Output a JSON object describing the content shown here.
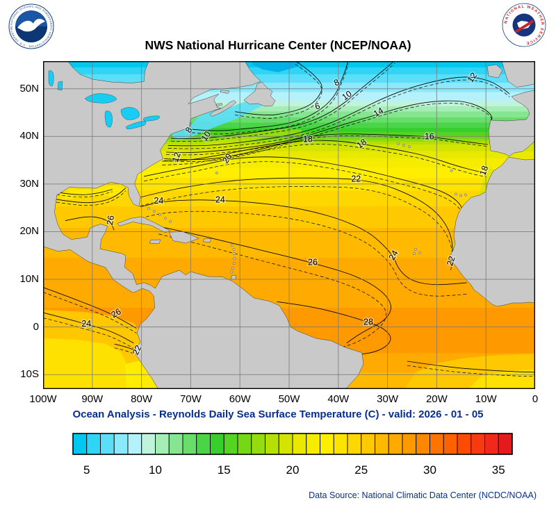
{
  "header": {
    "title": "NWS National Hurricane Center (NCEP/NOAA)",
    "noaa_logo_alt": "NOAA",
    "noaa_ring_text": "NATIONAL OCEANIC AND ATMOSPHERIC ADMINISTRATION · U.S. DEPARTMENT OF COMMERCE",
    "nws_ring_text": "NATIONAL WEATHER SERVICE"
  },
  "caption": "Ocean Analysis - Reynolds Daily Sea Surface Temperature (C) - valid: 2026 - 01 - 05",
  "footer": "Data Source: National Climatic Data Center (NCDC/NOAA)",
  "theme": {
    "title_color": "#000000",
    "caption_color": "#082d8d",
    "footer_color": "#082d8d",
    "nws_ring_color": "#cc2229",
    "noaa_navy": "#123d7c"
  },
  "map": {
    "lat_labels": [
      "50N",
      "40N",
      "30N",
      "20N",
      "10N",
      "0",
      "10S"
    ],
    "lat_values": [
      50,
      40,
      30,
      20,
      10,
      0,
      -10
    ],
    "lon_labels": [
      "100W",
      "90W",
      "80W",
      "70W",
      "60W",
      "50W",
      "40W",
      "30W",
      "20W",
      "10W",
      "0"
    ],
    "lon_values": [
      -100,
      -90,
      -80,
      -70,
      -60,
      -50,
      -40,
      -30,
      -20,
      -10,
      0
    ],
    "land_color": "#c9c9c9",
    "coast_color": "#3c3c3c",
    "grid_color": "#787878",
    "lake_color": "#17cdf4",
    "deep_cold_color": "#00b2e8",
    "frame_color": "#000000"
  },
  "chart_data": {
    "type": "heatmap",
    "title": "NWS National Hurricane Center (NCEP/NOAA)",
    "subtitle": "Ocean Analysis - Reynolds Daily Sea Surface Temperature (C) - valid: 2026 - 01 - 05",
    "units": "C",
    "lon_range": [
      -100,
      0
    ],
    "lat_range": [
      -13,
      55.8
    ],
    "grid": true,
    "labeled_levels": [
      6,
      8,
      10,
      12,
      14,
      16,
      18,
      20,
      22,
      24,
      26,
      28
    ],
    "contour_interval_solid": 2,
    "contour_interval_dashed": 1,
    "colorbar": {
      "min": 4,
      "max": 36,
      "ticks": [
        5,
        10,
        15,
        20,
        25,
        30,
        35
      ],
      "colors": [
        "#00C8F0",
        "#30D4F4",
        "#5CDEF8",
        "#8AE9FB",
        "#B4F1FA",
        "#BFF3DC",
        "#A4EDB4",
        "#86E590",
        "#68DD6C",
        "#4AD548",
        "#38CF2E",
        "#57D321",
        "#76D815",
        "#95DC0C",
        "#B4E006",
        "#D3E400",
        "#E9E800",
        "#F6EC00",
        "#FFEE00",
        "#FFE300",
        "#FFD700",
        "#FFC900",
        "#FFBA00",
        "#FFAA00",
        "#FF9900",
        "#FF8700",
        "#FF7400",
        "#FF6000",
        "#FF4B00",
        "#F93A10",
        "#F1281A",
        "#E51A1C"
      ]
    },
    "gradient_bands": [
      {
        "t": 4,
        "to": 54.5
      },
      {
        "t": 5,
        "to": 53
      },
      {
        "t": 6,
        "to": 51.3
      },
      {
        "t": 7,
        "to": 49.3
      },
      {
        "t": 8,
        "to": 47.5
      },
      {
        "t": 9,
        "to": 46.3
      },
      {
        "t": 10,
        "to": 45.2
      },
      {
        "t": 11,
        "to": 44
      },
      {
        "t": 12,
        "to": 42.9
      },
      {
        "t": 13,
        "to": 41.8
      },
      {
        "t": 14,
        "to": 40.9
      },
      {
        "t": 15,
        "to": 40.1
      },
      {
        "t": 16,
        "to": 39.4
      },
      {
        "t": 17,
        "to": 38.9
      },
      {
        "t": 18,
        "to": 38.3
      },
      {
        "t": 19,
        "to": 36.9
      },
      {
        "t": 20,
        "to": 35.4
      },
      {
        "t": 21,
        "to": 33.4
      },
      {
        "t": 22,
        "to": 31.2
      },
      {
        "t": 23,
        "to": 28.6
      },
      {
        "t": 24,
        "to": 25.3
      },
      {
        "t": 25,
        "to": 20.8
      },
      {
        "t": 26,
        "to": 14.5
      },
      {
        "t": 27,
        "to": 4
      },
      {
        "t": 28,
        "to": -5.5
      },
      {
        "t": 27,
        "to": -9.5
      },
      {
        "t": 26,
        "to": -13
      }
    ],
    "contours": [
      {
        "v": 6,
        "dash": -0.7,
        "pts": [
          [
            -61,
            45.2
          ],
          [
            -55,
            44.2
          ],
          [
            -50,
            45
          ],
          [
            -46,
            46.3
          ],
          [
            -44,
            48.2
          ],
          [
            -43,
            50.6
          ],
          [
            -45,
            53
          ],
          [
            -47.5,
            55
          ],
          [
            -49,
            56
          ]
        ]
      },
      {
        "v": 8,
        "dash": -0.7,
        "pts": [
          [
            -69.8,
            41.5
          ],
          [
            -65,
            41
          ],
          [
            -58,
            41.7
          ],
          [
            -52,
            42.3
          ],
          [
            -47,
            43.6
          ],
          [
            -43,
            46
          ],
          [
            -40.5,
            48.8
          ],
          [
            -39.5,
            51.5
          ],
          [
            -38.5,
            54
          ],
          [
            -38,
            56
          ]
        ]
      },
      {
        "v": 10,
        "dash": -0.6,
        "pts": [
          [
            -74,
            39.6
          ],
          [
            -69,
            39.4
          ],
          [
            -62,
            40.2
          ],
          [
            -55,
            41.1
          ],
          [
            -48,
            42.3
          ],
          [
            -43,
            44.2
          ],
          [
            -39,
            46.8
          ],
          [
            -36,
            49.5
          ],
          [
            -33,
            52
          ],
          [
            -30,
            54.6
          ],
          [
            -28.5,
            56
          ]
        ]
      },
      {
        "v": 12,
        "dash": -0.6,
        "pts": [
          [
            -74.6,
            38.1
          ],
          [
            -68,
            37.9
          ],
          [
            -60,
            38.7
          ],
          [
            -52,
            39.8
          ],
          [
            -46,
            41.2
          ],
          [
            -41,
            43
          ],
          [
            -36,
            45.4
          ],
          [
            -31,
            48
          ],
          [
            -25,
            50.4
          ],
          [
            -18,
            52.2
          ],
          [
            -13,
            52.6
          ],
          [
            -9,
            51.6
          ],
          [
            -6.5,
            50
          ],
          [
            -5.2,
            48.9
          ]
        ]
      },
      {
        "v": 14,
        "dash": -0.5,
        "pts": [
          [
            -75,
            36.7
          ],
          [
            -70,
            36.5
          ],
          [
            -63,
            37.1
          ],
          [
            -55,
            38.1
          ],
          [
            -48,
            39.6
          ],
          [
            -43,
            41.2
          ],
          [
            -38,
            42.8
          ],
          [
            -33,
            44.3
          ],
          [
            -28,
            45.9
          ],
          [
            -22,
            47.3
          ],
          [
            -15,
            47.6
          ],
          [
            -10.5,
            46
          ],
          [
            -8.6,
            44.2
          ],
          [
            -9,
            43.4
          ]
        ]
      },
      {
        "v": 16,
        "dash": -0.4,
        "pts": [
          [
            -75.4,
            35.3
          ],
          [
            -69,
            34.9
          ],
          [
            -61,
            35.9
          ],
          [
            -53,
            38
          ],
          [
            -47,
            39.9
          ],
          [
            -40,
            40.6
          ],
          [
            -32,
            40.4
          ],
          [
            -25,
            40.1
          ],
          [
            -21,
            39.9
          ],
          [
            -15,
            39
          ],
          [
            -9.6,
            38.3
          ]
        ]
      },
      {
        "v": 18,
        "dash": -0.8,
        "pts": [
          [
            -75.8,
            34.8
          ],
          [
            -71,
            34.9
          ],
          [
            -65,
            35.9
          ],
          [
            -58,
            37.3
          ],
          [
            -51,
            38.6
          ],
          [
            -46,
            39.2
          ],
          [
            -40,
            39.1
          ],
          [
            -34,
            38.2
          ],
          [
            -28,
            37.2
          ],
          [
            -22,
            35.9
          ],
          [
            -16,
            33.8
          ],
          [
            -11.5,
            32.6
          ],
          [
            -9.9,
            32.3
          ]
        ]
      },
      {
        "v": 20,
        "dash": -1.0,
        "pts": [
          [
            -79.5,
            31.6
          ],
          [
            -74,
            32.8
          ],
          [
            -68,
            33.9
          ],
          [
            -62.5,
            35.2
          ],
          [
            -56,
            35.8
          ],
          [
            -49,
            35.5
          ],
          [
            -42,
            34.4
          ],
          [
            -35,
            33
          ],
          [
            -28,
            31.2
          ],
          [
            -22,
            29.6
          ],
          [
            -17.4,
            27.8
          ],
          [
            -14.6,
            25.2
          ],
          [
            -15,
            22.6
          ],
          [
            -16.2,
            21.2
          ]
        ]
      },
      {
        "v": 22,
        "dash": -1.8,
        "pts": [
          [
            -80.3,
            27.2
          ],
          [
            -75,
            28.6
          ],
          [
            -68,
            29.9
          ],
          [
            -61,
            30.8
          ],
          [
            -54,
            31.2
          ],
          [
            -47,
            31.3
          ],
          [
            -41,
            31.2
          ],
          [
            -36.4,
            31
          ],
          [
            -31,
            30
          ],
          [
            -26,
            28
          ],
          [
            -21.5,
            25.4
          ],
          [
            -18.6,
            22.4
          ],
          [
            -17,
            19
          ],
          [
            -16.7,
            15.6
          ],
          [
            -17.2,
            13.6
          ]
        ]
      },
      {
        "v": 24,
        "dash": -2.4,
        "pts": [
          [
            -80.2,
            25.2
          ],
          [
            -76.5,
            26.3
          ],
          [
            -70,
            26.7
          ],
          [
            -64,
            26.6
          ],
          [
            -58,
            26.2
          ],
          [
            -51,
            25.4
          ],
          [
            -45,
            24.2
          ],
          [
            -39,
            22.4
          ],
          [
            -34,
            20
          ],
          [
            -31,
            17.4
          ],
          [
            -28.8,
            14.8
          ],
          [
            -27.6,
            11.8
          ],
          [
            -25,
            9.6
          ],
          [
            -21,
            8.8
          ],
          [
            -17,
            9
          ],
          [
            -13.9,
            9.3
          ]
        ]
      },
      {
        "v": 26,
        "dash": 0,
        "pts": [
          [
            -77.5,
            21.3
          ],
          [
            -70,
            19.7
          ],
          [
            -62,
            17.7
          ],
          [
            -54,
            15.7
          ],
          [
            -47,
            13.9
          ],
          [
            -42,
            12.5
          ],
          [
            -37,
            10.9
          ],
          [
            -33,
            8.9
          ],
          [
            -30,
            6.4
          ],
          [
            -29,
            3.8
          ],
          [
            -30.6,
            1.3
          ],
          [
            -33.8,
            -0.4
          ],
          [
            -36.2,
            -1.8
          ],
          [
            -38.3,
            -3.4
          ]
        ]
      },
      {
        "v": 27,
        "style": "dashed",
        "dash": 0,
        "pts": [
          [
            -76.5,
            19.5
          ],
          [
            -69,
            17.6
          ],
          [
            -61,
            15.4
          ],
          [
            -53,
            13.2
          ],
          [
            -47,
            11.6
          ],
          [
            -41,
            9.9
          ],
          [
            -36,
            8
          ],
          [
            -32,
            5.6
          ],
          [
            -30,
            3.2
          ],
          [
            -30.8,
            0.6
          ],
          [
            -33.6,
            -1.8
          ],
          [
            -37,
            -3.6
          ],
          [
            -39.8,
            -4.4
          ]
        ]
      },
      {
        "v": 28,
        "dash": 0,
        "pts": [
          [
            -52.5,
            5.3
          ],
          [
            -46,
            4.4
          ],
          [
            -40,
            2.9
          ],
          [
            -35,
            1.4
          ],
          [
            -31,
            -0.1
          ],
          [
            -29,
            -2.2
          ],
          [
            -30.2,
            -4.2
          ],
          [
            -33.5,
            -5.6
          ],
          [
            -37.5,
            -5.8
          ],
          [
            -40.5,
            -4.6
          ],
          [
            -43,
            -3.2
          ],
          [
            -44.8,
            -2.5
          ]
        ]
      },
      {
        "v": 26,
        "dash": 0,
        "pts": [
          [
            -95.5,
            22.3
          ],
          [
            -91,
            23.4
          ],
          [
            -87.6,
            22.7
          ],
          [
            -86,
            21.6
          ],
          [
            -85.6,
            20.3
          ]
        ]
      },
      {
        "v": 24,
        "dash": -0.6,
        "pts": [
          [
            -97.3,
            26.8
          ],
          [
            -92,
            25.9
          ],
          [
            -87.5,
            26.4
          ],
          [
            -84.8,
            27.7
          ],
          [
            -83.2,
            29.2
          ]
        ]
      },
      {
        "v": 22,
        "dash": -0.5,
        "pts": [
          [
            -97.3,
            28.3
          ],
          [
            -93,
            27.6
          ],
          [
            -89,
            28
          ],
          [
            -85.9,
            28.9
          ]
        ]
      },
      {
        "v": 26,
        "dash": -1.0,
        "pts": [
          [
            -100,
            8.3
          ],
          [
            -95,
            6.4
          ],
          [
            -90,
            4.4
          ],
          [
            -86.5,
            2.9
          ],
          [
            -83.5,
            1.2
          ],
          [
            -81,
            -0.3
          ]
        ]
      },
      {
        "v": 24,
        "dash": -1.1,
        "pts": [
          [
            -100,
            3
          ],
          [
            -95,
            1.7
          ],
          [
            -91,
            0.5
          ],
          [
            -87,
            -0.6
          ],
          [
            -84,
            -2
          ],
          [
            -81.6,
            -3.4
          ]
        ]
      },
      {
        "v": 22,
        "dash": -0.8,
        "pts": [
          [
            -85.5,
            -3.6
          ],
          [
            -82,
            -4.4
          ],
          [
            -79.8,
            -6
          ],
          [
            -79.2,
            -7.4
          ]
        ]
      },
      {
        "v": 26,
        "dash": -0.9,
        "pts": [
          [
            -26,
            -7.2
          ],
          [
            -18,
            -8.4
          ],
          [
            -11,
            -9
          ],
          [
            -4,
            -9.4
          ],
          [
            0,
            -9.5
          ]
        ]
      }
    ],
    "contour_labels": [
      {
        "v": 12,
        "lon": -12.7,
        "lat": 52.3,
        "rot": -55
      },
      {
        "v": 8,
        "lon": -40.3,
        "lat": 51.2,
        "rot": -25
      },
      {
        "v": 10,
        "lon": -38.2,
        "lat": 48.5,
        "rot": -35
      },
      {
        "v": 6,
        "lon": -44.2,
        "lat": 46.2,
        "rot": -15
      },
      {
        "v": 14,
        "lon": -31.8,
        "lat": 45.0,
        "rot": -30
      },
      {
        "v": 8,
        "lon": -70.3,
        "lat": 41.3,
        "rot": -60
      },
      {
        "v": 10,
        "lon": -66.8,
        "lat": 40.0,
        "rot": -55
      },
      {
        "v": 18,
        "lon": -46.2,
        "lat": 39.3,
        "rot": 0
      },
      {
        "v": 16,
        "lon": -21.5,
        "lat": 39.9,
        "rot": 0
      },
      {
        "v": 18,
        "lon": -35.2,
        "lat": 38.4,
        "rot": -35
      },
      {
        "v": 20,
        "lon": -62.5,
        "lat": 35.3,
        "rot": -55
      },
      {
        "v": 12,
        "lon": -72.8,
        "lat": 35.6,
        "rot": -72
      },
      {
        "v": 22,
        "lon": -36.4,
        "lat": 31.0,
        "rot": 0
      },
      {
        "v": 18,
        "lon": -10.3,
        "lat": 32.8,
        "rot": -70
      },
      {
        "v": 24,
        "lon": -76.5,
        "lat": 26.4,
        "rot": 0
      },
      {
        "v": 24,
        "lon": -64.0,
        "lat": 26.6,
        "rot": 0
      },
      {
        "v": 26,
        "lon": -86.2,
        "lat": 22.4,
        "rot": -80
      },
      {
        "v": 26,
        "lon": -45.2,
        "lat": 13.5,
        "rot": 0
      },
      {
        "v": 24,
        "lon": -28.7,
        "lat": 15.0,
        "rot": -60
      },
      {
        "v": 22,
        "lon": -17.0,
        "lat": 13.8,
        "rot": -72
      },
      {
        "v": 28,
        "lon": -33.9,
        "lat": 0.9,
        "rot": 0
      },
      {
        "v": 24,
        "lon": -91.2,
        "lat": 0.6,
        "rot": 0
      },
      {
        "v": 26,
        "lon": -85.1,
        "lat": 2.8,
        "rot": -30
      },
      {
        "v": 22,
        "lon": -80.8,
        "lat": -4.9,
        "rot": -65
      }
    ]
  }
}
